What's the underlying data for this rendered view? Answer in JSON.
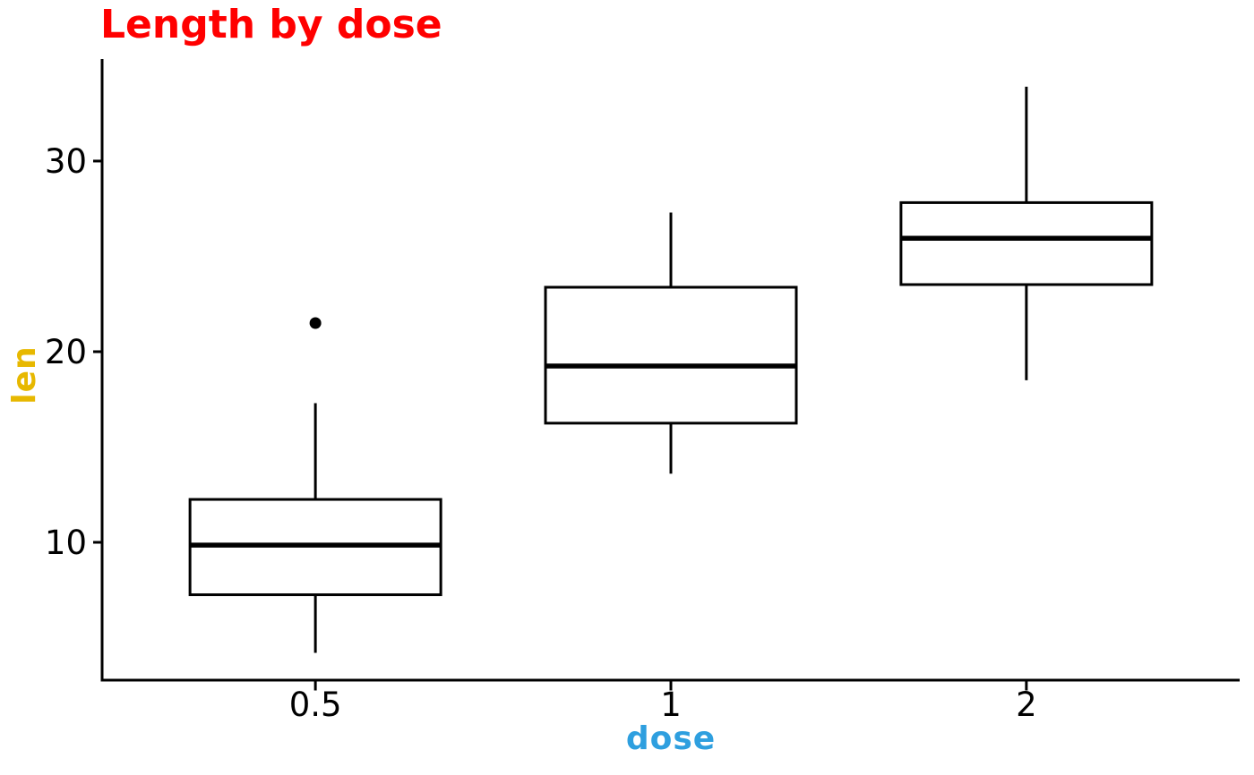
{
  "chart_data": {
    "type": "boxplot",
    "title": "Length by dose",
    "xlabel": "dose",
    "ylabel": "len",
    "categories": [
      "0.5",
      "1",
      "2"
    ],
    "y_ticks": [
      "10",
      "20",
      "30"
    ],
    "y_tick_values": [
      10,
      20,
      30
    ],
    "ylim": [
      2.77,
      35.35
    ],
    "grid": false,
    "legend": "none",
    "series": [
      {
        "category": "0.5",
        "whisker_low": 4.2,
        "q1": 7.25,
        "median": 9.85,
        "q3": 12.25,
        "whisker_high": 17.3,
        "outliers": [
          21.5
        ]
      },
      {
        "category": "1",
        "whisker_low": 13.6,
        "q1": 16.25,
        "median": 19.25,
        "q3": 23.38,
        "whisker_high": 27.3,
        "outliers": []
      },
      {
        "category": "2",
        "whisker_low": 18.5,
        "q1": 23.52,
        "median": 25.95,
        "q3": 27.82,
        "whisker_high": 33.9,
        "outliers": []
      }
    ],
    "colors": {
      "title": "#FF0000",
      "xlabel": "#2E9FDF",
      "ylabel": "#E7B800",
      "tick_label": "#000000",
      "axis": "#000000",
      "box_stroke": "#000000",
      "box_fill": "#FFFFFF",
      "outlier": "#000000",
      "background": "#FFFFFF"
    }
  }
}
